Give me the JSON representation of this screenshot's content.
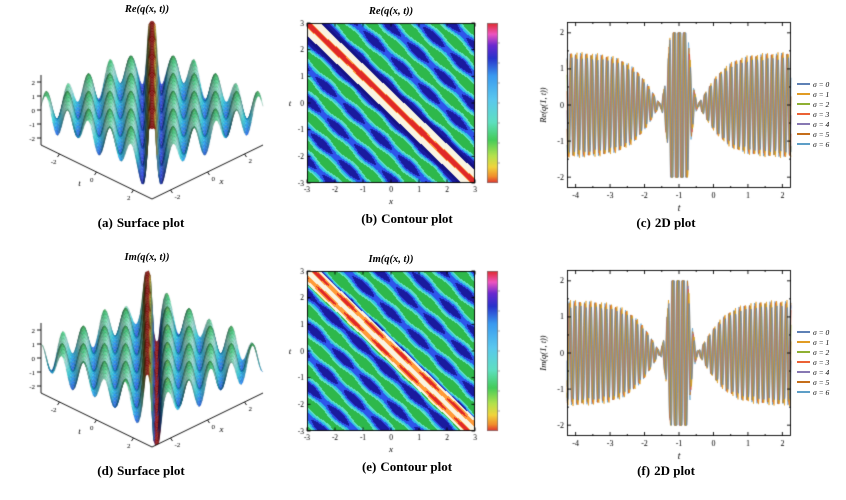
{
  "page": {
    "background": "#ffffff"
  },
  "model": {
    "stripe_frequency": 5.5,
    "ripple_frequency": 3.2,
    "ripple_amplitude": 0.28,
    "ridge_amplitude": 3.4,
    "ridge_sharpness": 5.0,
    "re_phase": 0,
    "im_phase": 1.5708,
    "line_frequency": 42,
    "line_phase_step": 0.38,
    "envelope": {
      "outer_amplitude": 1.32,
      "node_offset": 0.55,
      "node_slope": 1.15,
      "burst_amplitude": 3.8,
      "burst_width": 0.26,
      "burst_center": -1,
      "clip": 2.0
    }
  },
  "surface_colormap": [
    [
      0,
      "#2a1690"
    ],
    [
      0.22,
      "#2b50e0"
    ],
    [
      0.42,
      "#28c4e6"
    ],
    [
      0.58,
      "#a8f0e0"
    ],
    [
      0.72,
      "#3ec878"
    ],
    [
      0.85,
      "#d8c030"
    ],
    [
      0.93,
      "#d04018"
    ],
    [
      1,
      "#8c0a0a"
    ]
  ],
  "surface_underflow_color": "#9c1010",
  "contour_palette": {
    "green": "#2eb84b",
    "teal": "#63e0c8",
    "cyan": "#2fbfe8",
    "blue": "#2e55ea",
    "navy": "#1a1a9e",
    "deep_navy": "#141285",
    "yellow": "#f2ea5c",
    "cream": "#faf4e2",
    "orange": "#ff9a38",
    "red": "#e02828"
  },
  "chart_data": [
    {
      "id": "a",
      "type": "surface",
      "component": "re",
      "title": "Re(q(x, t))",
      "caption_label": "(a)",
      "caption_text": "Surface plot",
      "x_label": "x",
      "t_label": "t",
      "x_range": [
        -3,
        3
      ],
      "t_range": [
        -3,
        3
      ],
      "z_range": [
        -2,
        2
      ],
      "x_ticks": [
        -2,
        0,
        2
      ],
      "t_ticks": [
        -2,
        0,
        2
      ],
      "z_ticks": [
        -2,
        -1,
        0,
        1,
        2
      ]
    },
    {
      "id": "b",
      "type": "contour",
      "component": "re",
      "title": "Re(q(x, t))",
      "caption_label": "(b)",
      "caption_text": "Contour plot",
      "x_label": "x",
      "y_label": "t",
      "x_range": [
        -3,
        3
      ],
      "y_range": [
        -3,
        3
      ],
      "x_ticks": [
        -3,
        -2,
        -1,
        0,
        1,
        2,
        3
      ],
      "y_ticks": [
        -3,
        -2,
        -1,
        0,
        1,
        2,
        3
      ],
      "colorbar_stops": [
        [
          0,
          "#e02828"
        ],
        [
          0.07,
          "#ee55c0"
        ],
        [
          0.14,
          "#6a28d0"
        ],
        [
          0.22,
          "#2832cc"
        ],
        [
          0.33,
          "#3a9af0"
        ],
        [
          0.48,
          "#5ac8ee"
        ],
        [
          0.62,
          "#5ee0c0"
        ],
        [
          0.73,
          "#44cc5a"
        ],
        [
          0.83,
          "#b4e24c"
        ],
        [
          0.9,
          "#f0d43c"
        ],
        [
          0.96,
          "#f08c2c"
        ],
        [
          1,
          "#e03030"
        ]
      ]
    },
    {
      "id": "c",
      "type": "line",
      "component": "re",
      "caption_label": "(c)",
      "caption_text": "2D plot",
      "x_label": "t",
      "y_label": "Re(q(1, t))",
      "x_range": [
        -4,
        2
      ],
      "y_range": [
        -2,
        2
      ],
      "x_ticks": [
        -4,
        -3,
        -2,
        -1,
        0,
        1,
        2
      ],
      "y_ticks": [
        -2,
        -1,
        0,
        1,
        2
      ],
      "legend": [
        {
          "label": "σ = 0",
          "color": "#5e81b5",
          "amp_scale": 1.0
        },
        {
          "label": "σ = 1",
          "color": "#e19c24",
          "amp_scale": 1.12
        },
        {
          "label": "σ = 2",
          "color": "#8fb032",
          "amp_scale": 1.05
        },
        {
          "label": "σ = 3",
          "color": "#eb6235",
          "amp_scale": 1.09
        },
        {
          "label": "σ = 4",
          "color": "#8778b3",
          "amp_scale": 1.03
        },
        {
          "label": "σ = 5",
          "color": "#c56e1a",
          "amp_scale": 1.07
        },
        {
          "label": "σ = 6",
          "color": "#5d9ec7",
          "amp_scale": 1.1
        }
      ]
    },
    {
      "id": "d",
      "type": "surface",
      "component": "im",
      "title": "Im(q(x, t))",
      "caption_label": "(d)",
      "caption_text": "Surface plot",
      "x_label": "x",
      "t_label": "t",
      "x_range": [
        -3,
        3
      ],
      "t_range": [
        -3,
        3
      ],
      "z_range": [
        -2,
        2
      ],
      "x_ticks": [
        -2,
        0,
        2
      ],
      "t_ticks": [
        -2,
        0,
        2
      ],
      "z_ticks": [
        -2,
        -1,
        0,
        1,
        2
      ]
    },
    {
      "id": "e",
      "type": "contour",
      "component": "im",
      "title": "Im(q(x, t))",
      "caption_label": "(e)",
      "caption_text": "Contour plot",
      "x_label": "x",
      "y_label": "t",
      "x_range": [
        -3,
        3
      ],
      "y_range": [
        -3,
        3
      ],
      "x_ticks": [
        -3,
        -2,
        -1,
        0,
        1,
        2,
        3
      ],
      "y_ticks": [
        -3,
        -2,
        -1,
        0,
        1,
        2,
        3
      ],
      "colorbar_stops": [
        [
          0,
          "#e02828"
        ],
        [
          0.07,
          "#ee55c0"
        ],
        [
          0.14,
          "#6a28d0"
        ],
        [
          0.22,
          "#2832cc"
        ],
        [
          0.33,
          "#3a9af0"
        ],
        [
          0.48,
          "#5ac8ee"
        ],
        [
          0.62,
          "#5ee0c0"
        ],
        [
          0.73,
          "#44cc5a"
        ],
        [
          0.83,
          "#b4e24c"
        ],
        [
          0.9,
          "#f0d43c"
        ],
        [
          0.96,
          "#f08c2c"
        ],
        [
          1,
          "#e03030"
        ]
      ]
    },
    {
      "id": "f",
      "type": "line",
      "component": "im",
      "caption_label": "(f)",
      "caption_text": "2D plot",
      "x_label": "t",
      "y_label": "Im(q(1, t))",
      "x_range": [
        -4,
        2
      ],
      "y_range": [
        -2,
        2
      ],
      "x_ticks": [
        -4,
        -3,
        -2,
        -1,
        0,
        1,
        2
      ],
      "y_ticks": [
        -2,
        -1,
        0,
        1,
        2
      ],
      "legend": [
        {
          "label": "σ = 0",
          "color": "#5e81b5",
          "amp_scale": 1.0
        },
        {
          "label": "σ = 1",
          "color": "#e19c24",
          "amp_scale": 1.12
        },
        {
          "label": "σ = 2",
          "color": "#8fb032",
          "amp_scale": 1.05
        },
        {
          "label": "σ = 3",
          "color": "#eb6235",
          "amp_scale": 1.09
        },
        {
          "label": "σ = 4",
          "color": "#8778b3",
          "amp_scale": 1.03
        },
        {
          "label": "σ = 5",
          "color": "#c56e1a",
          "amp_scale": 1.07
        },
        {
          "label": "σ = 6",
          "color": "#5d9ec7",
          "amp_scale": 1.1
        }
      ]
    }
  ]
}
